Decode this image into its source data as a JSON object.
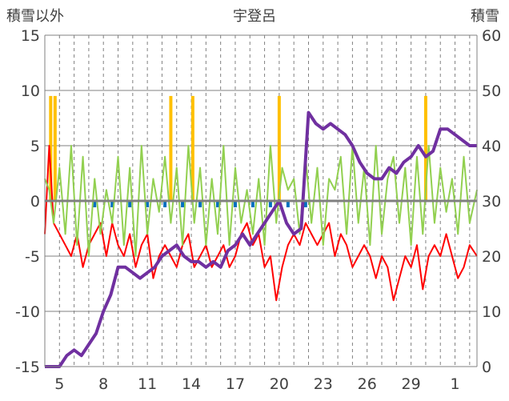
{
  "chart_data": {
    "type": "line",
    "title": "宇登呂",
    "ylabel_left": "積雪以外",
    "ylabel_right": "積雪",
    "x_tick_labels": [
      "5",
      "8",
      "11",
      "14",
      "17",
      "20",
      "23",
      "26",
      "29",
      "1"
    ],
    "x_tick_days": [
      5,
      8,
      11,
      14,
      17,
      20,
      23,
      26,
      29,
      32
    ],
    "xlim": [
      4,
      33.5
    ],
    "ylim_left": [
      -15,
      15
    ],
    "ylim_right": [
      0,
      60
    ],
    "yticks_left": [
      "15",
      "10",
      "5",
      "0",
      "-5",
      "-10",
      "-15"
    ],
    "yticks_right": [
      "60",
      "50",
      "40",
      "30",
      "20",
      "10",
      "0"
    ],
    "yticks_left_values": [
      15,
      10,
      5,
      0,
      -5,
      -10,
      -15
    ],
    "yticks_right_values": [
      60,
      50,
      40,
      30,
      20,
      10,
      0
    ],
    "grid": true,
    "colors": {
      "precip": "#ffc000",
      "sunshine_or_wind": "#92d050",
      "temperature": "#ff0000",
      "snow_depth": "#7030a0",
      "bars_negative": "#0070c0",
      "grid": "#808080",
      "zero_line": "#808080"
    },
    "series": [
      {
        "id": "temperature",
        "axis": "left",
        "x": [
          4,
          4.3,
          4.6,
          5,
          5.4,
          5.8,
          6.2,
          6.6,
          7,
          7.4,
          7.8,
          8.2,
          8.6,
          9,
          9.4,
          9.8,
          10.2,
          10.6,
          11,
          11.4,
          11.8,
          12.2,
          12.6,
          13,
          13.4,
          13.8,
          14.2,
          14.6,
          15,
          15.4,
          15.8,
          16.2,
          16.6,
          17,
          17.4,
          17.8,
          18.2,
          18.6,
          19,
          19.4,
          19.8,
          20.2,
          20.6,
          21,
          21.4,
          21.8,
          22.2,
          22.6,
          23,
          23.4,
          23.8,
          24.2,
          24.6,
          25,
          25.4,
          25.8,
          26.2,
          26.6,
          27,
          27.4,
          27.8,
          28.2,
          28.6,
          29,
          29.4,
          29.8,
          30.2,
          30.6,
          31,
          31.4,
          31.8,
          32.2,
          32.6,
          33,
          33.5
        ],
        "values": [
          -3,
          5,
          -2,
          -3,
          -4,
          -5,
          -3,
          -6,
          -4,
          -3,
          -2,
          -5,
          -2,
          -4,
          -5,
          -3,
          -6,
          -4,
          -3,
          -7,
          -5,
          -4,
          -5,
          -6,
          -4,
          -3,
          -6,
          -5,
          -4,
          -6,
          -5,
          -4,
          -6,
          -5,
          -3,
          -2,
          -4,
          -3,
          -6,
          -5,
          -9,
          -6,
          -4,
          -3,
          -4,
          -2,
          -3,
          -4,
          -3,
          -2,
          -5,
          -3,
          -4,
          -6,
          -5,
          -4,
          -5,
          -7,
          -5,
          -6,
          -9,
          -7,
          -5,
          -6,
          -4,
          -8,
          -5,
          -4,
          -5,
          -3,
          -5,
          -7,
          -6,
          -4,
          -5
        ]
      },
      {
        "id": "sunshine_or_wind",
        "axis": "left",
        "x": [
          4,
          4.3,
          4.6,
          5,
          5.4,
          5.8,
          6.2,
          6.6,
          7,
          7.4,
          7.8,
          8.2,
          8.6,
          9,
          9.4,
          9.8,
          10.2,
          10.6,
          11,
          11.4,
          11.8,
          12.2,
          12.6,
          13,
          13.4,
          13.8,
          14.2,
          14.6,
          15,
          15.4,
          15.8,
          16.2,
          16.6,
          17,
          17.4,
          17.8,
          18.2,
          18.6,
          19,
          19.4,
          19.8,
          20.2,
          20.6,
          21,
          21.4,
          21.8,
          22.2,
          22.6,
          23,
          23.4,
          23.8,
          24.2,
          24.6,
          25,
          25.4,
          25.8,
          26.2,
          26.6,
          27,
          27.4,
          27.8,
          28.2,
          28.6,
          29,
          29.4,
          29.8,
          30.2,
          30.6,
          31,
          31.4,
          31.8,
          32.2,
          32.6,
          33,
          33.5
        ],
        "values": [
          2,
          1,
          -2,
          3,
          -3,
          5,
          -4,
          4,
          -5,
          2,
          -3,
          1,
          -2,
          4,
          -4,
          3,
          -5,
          5,
          -3,
          2,
          -1,
          4,
          -2,
          3,
          -4,
          5,
          -2,
          3,
          -4,
          2,
          -3,
          5,
          -4,
          3,
          -2,
          1,
          -3,
          2,
          -4,
          5,
          -2,
          3,
          1,
          2,
          -3,
          4,
          -2,
          3,
          -4,
          2,
          1,
          4,
          -3,
          5,
          -2,
          3,
          -4,
          5,
          -3,
          2,
          4,
          -2,
          3,
          -4,
          4,
          -3,
          5,
          -2,
          3,
          -1,
          2,
          -3,
          4,
          -2,
          1
        ]
      },
      {
        "id": "snow_depth",
        "axis": "right",
        "x": [
          4,
          4.5,
          5,
          5.5,
          6,
          6.5,
          7,
          7.5,
          8,
          8.5,
          9,
          9.5,
          10,
          10.5,
          11,
          11.5,
          12,
          12.5,
          13,
          13.5,
          14,
          14.5,
          15,
          15.5,
          16,
          16.5,
          17,
          17.5,
          18,
          18.5,
          19,
          19.5,
          20,
          20.5,
          21,
          21.5,
          22,
          22.5,
          23,
          23.5,
          24,
          24.5,
          25,
          25.5,
          26,
          26.5,
          27,
          27.5,
          28,
          28.5,
          29,
          29.5,
          30,
          30.5,
          31,
          31.5,
          32,
          32.5,
          33,
          33.5
        ],
        "values": [
          0,
          0,
          0,
          2,
          3,
          2,
          4,
          6,
          10,
          13,
          18,
          18,
          17,
          16,
          17,
          18,
          20,
          21,
          22,
          20,
          19,
          19,
          18,
          19,
          18,
          21,
          22,
          24,
          22,
          24,
          26,
          28,
          30,
          26,
          24,
          25,
          46,
          44,
          43,
          44,
          43,
          42,
          40,
          37,
          35,
          34,
          34,
          36,
          35,
          37,
          38,
          40,
          38,
          39,
          43,
          43,
          42,
          41,
          40,
          40
        ]
      }
    ]
  }
}
